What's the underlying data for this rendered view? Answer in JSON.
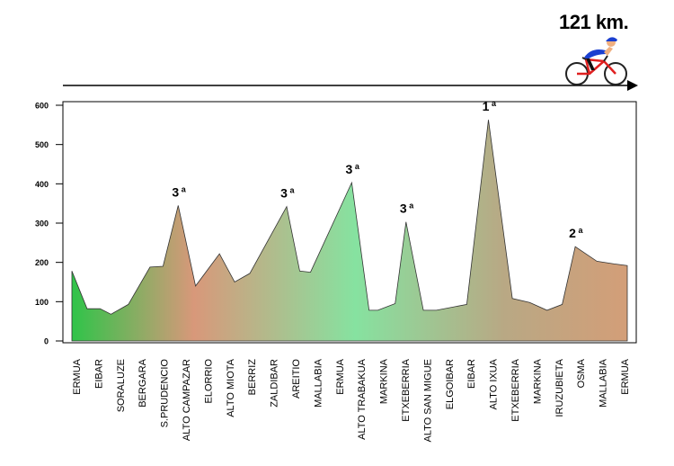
{
  "header": {
    "distance_label": "121 km."
  },
  "colors": {
    "gradient_stops": [
      "#2fc449",
      "#d8987a",
      "#86e2a0",
      "#b9a884",
      "#d39e78"
    ],
    "plot_border": "#000000"
  },
  "chart_data": {
    "type": "area",
    "title": "",
    "xlabel": "",
    "ylabel": "",
    "ylim": [
      0,
      600
    ],
    "yticks": [
      0,
      100,
      200,
      300,
      400,
      500,
      600
    ],
    "grid": false,
    "categories": [
      "ERMUA",
      "EIBAR",
      "SORALUZE",
      "BERGARA",
      "S.PRUDENCIO",
      "ALTO CAMPAZAR",
      "ELORRIO",
      "ALTO MIOTA",
      "BERRIZ",
      "ZALDIBAR",
      "AREITIO",
      "MALLABIA",
      "ERMUA",
      "ALTO TRABAKUA",
      "MARKINA",
      "ETXEBERRIA",
      "ALTO SAN MIGUE",
      "ELGOIBAR",
      "EIBAR",
      "ALTO IXUA",
      "ETXEBERRIA",
      "MARKINA",
      "IRUZUBIETA",
      "OSMA",
      "MALLABIA",
      "ERMUA"
    ],
    "profile": [
      {
        "km": 0.0,
        "alt": 178
      },
      {
        "km": 0.7,
        "alt": 82
      },
      {
        "km": 1.3,
        "alt": 82
      },
      {
        "km": 1.8,
        "alt": 68
      },
      {
        "km": 2.6,
        "alt": 93
      },
      {
        "km": 3.6,
        "alt": 188
      },
      {
        "km": 4.2,
        "alt": 190
      },
      {
        "km": 4.9,
        "alt": 345
      },
      {
        "km": 5.7,
        "alt": 140
      },
      {
        "km": 6.8,
        "alt": 222
      },
      {
        "km": 7.5,
        "alt": 150
      },
      {
        "km": 8.2,
        "alt": 172
      },
      {
        "km": 9.9,
        "alt": 342
      },
      {
        "km": 10.5,
        "alt": 178
      },
      {
        "km": 11.0,
        "alt": 175
      },
      {
        "km": 12.9,
        "alt": 403
      },
      {
        "km": 13.7,
        "alt": 78
      },
      {
        "km": 14.1,
        "alt": 78
      },
      {
        "km": 14.9,
        "alt": 95
      },
      {
        "km": 15.4,
        "alt": 303
      },
      {
        "km": 16.2,
        "alt": 78
      },
      {
        "km": 16.8,
        "alt": 78
      },
      {
        "km": 18.2,
        "alt": 93
      },
      {
        "km": 19.2,
        "alt": 563
      },
      {
        "km": 20.3,
        "alt": 108
      },
      {
        "km": 21.1,
        "alt": 98
      },
      {
        "km": 21.9,
        "alt": 78
      },
      {
        "km": 22.6,
        "alt": 93
      },
      {
        "km": 23.2,
        "alt": 240
      },
      {
        "km": 24.2,
        "alt": 203
      },
      {
        "km": 25.0,
        "alt": 196
      },
      {
        "km": 25.6,
        "alt": 192
      }
    ],
    "climbs": [
      {
        "category": "3",
        "suffix": "a",
        "km": 4.9,
        "alt": 345
      },
      {
        "category": "3",
        "suffix": "a",
        "km": 9.9,
        "alt": 342
      },
      {
        "category": "3",
        "suffix": "a",
        "km": 12.9,
        "alt": 403
      },
      {
        "category": "3",
        "suffix": "a",
        "km": 15.4,
        "alt": 303
      },
      {
        "category": "1",
        "suffix": "a",
        "km": 19.2,
        "alt": 563
      },
      {
        "category": "2",
        "suffix": "a",
        "km": 23.2,
        "alt": 240
      }
    ]
  }
}
